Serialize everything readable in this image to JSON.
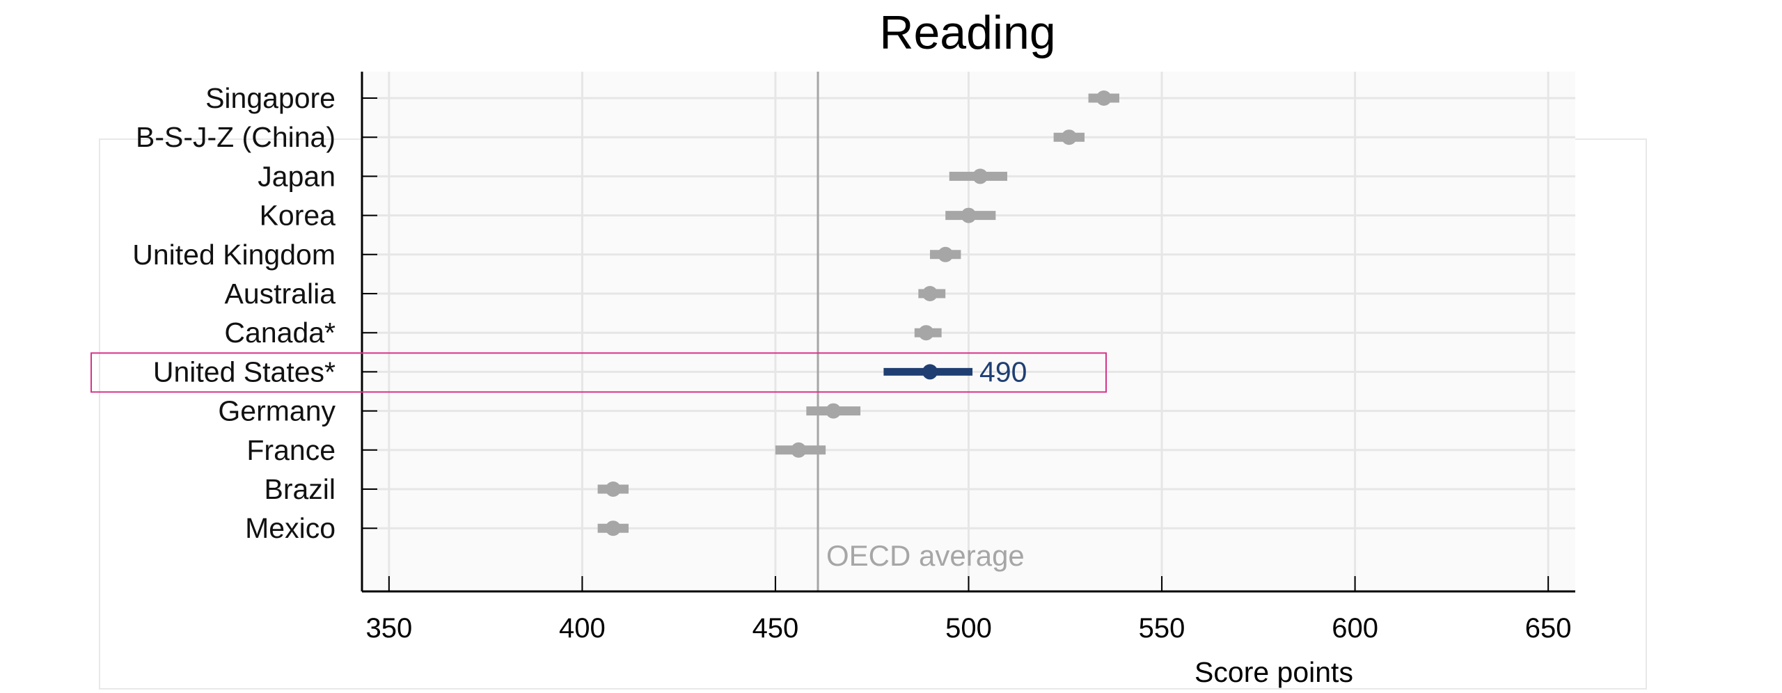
{
  "chart_data": {
    "type": "dot-interval",
    "title": "Reading",
    "xlabel": "Score points",
    "xlim": [
      343,
      657
    ],
    "xticks": [
      350,
      400,
      450,
      500,
      550,
      600,
      650
    ],
    "oecd_average": {
      "label": "OECD average",
      "value": 461
    },
    "countries": [
      {
        "name": "Singapore",
        "value": 535,
        "low": 531,
        "high": 539
      },
      {
        "name": "B-S-J-Z (China)",
        "value": 526,
        "low": 522,
        "high": 530
      },
      {
        "name": "Japan",
        "value": 503,
        "low": 495,
        "high": 510
      },
      {
        "name": "Korea",
        "value": 500,
        "low": 494,
        "high": 507
      },
      {
        "name": "United Kingdom",
        "value": 494,
        "low": 490,
        "high": 498
      },
      {
        "name": "Australia",
        "value": 490,
        "low": 487,
        "high": 494
      },
      {
        "name": "Canada*",
        "value": 489,
        "low": 486,
        "high": 493
      },
      {
        "name": "United States*",
        "value": 490,
        "low": 478,
        "high": 501,
        "highlighted": true,
        "value_label": "490"
      },
      {
        "name": "Germany",
        "value": 465,
        "low": 458,
        "high": 472
      },
      {
        "name": "France",
        "value": 456,
        "low": 450,
        "high": 463
      },
      {
        "name": "Brazil",
        "value": 408,
        "low": 404,
        "high": 412
      },
      {
        "name": "Mexico",
        "value": 408,
        "low": 404,
        "high": 412
      }
    ],
    "grid": true,
    "colors": {
      "default": "#a6a6a6",
      "highlight": "#1f3f73",
      "highlight_box": "#d6338a",
      "oecd_line": "#a6a6a6",
      "oecd_label": "#a6a6a6",
      "plot_background": "#fafafa",
      "grid": "#e6e6e6",
      "axis": "#000000"
    }
  }
}
